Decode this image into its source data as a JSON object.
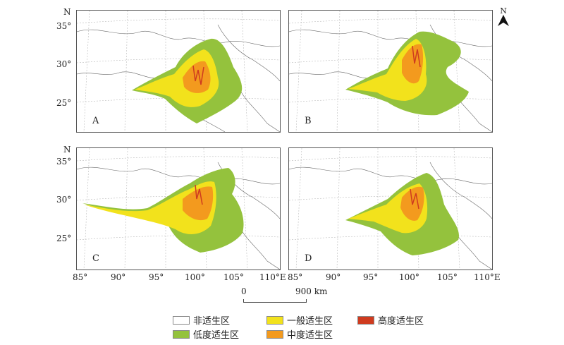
{
  "panels": [
    {
      "id": "A",
      "label": "A"
    },
    {
      "id": "B",
      "label": "B"
    },
    {
      "id": "C",
      "label": "C"
    },
    {
      "id": "D",
      "label": "D"
    }
  ],
  "axes": {
    "north_label": "N",
    "y_ticks": [
      "35°",
      "30°",
      "25°"
    ],
    "x_ticks": [
      "85°",
      "90°",
      "95°",
      "100°",
      "105°",
      "110°E"
    ]
  },
  "scale_bar": {
    "start": "0",
    "end": "900 km"
  },
  "north_arrow": {
    "label": "N",
    "icon": "north-arrow-icon"
  },
  "legend": [
    {
      "label": "非适生区",
      "color": "#ffffff"
    },
    {
      "label": "一般适生区",
      "color": "#f2e21c"
    },
    {
      "label": "高度适生区",
      "color": "#cf3b1f"
    },
    {
      "label": "低度适生区",
      "color": "#94c23d"
    },
    {
      "label": "中度适生区",
      "color": "#f39a1e"
    }
  ]
}
